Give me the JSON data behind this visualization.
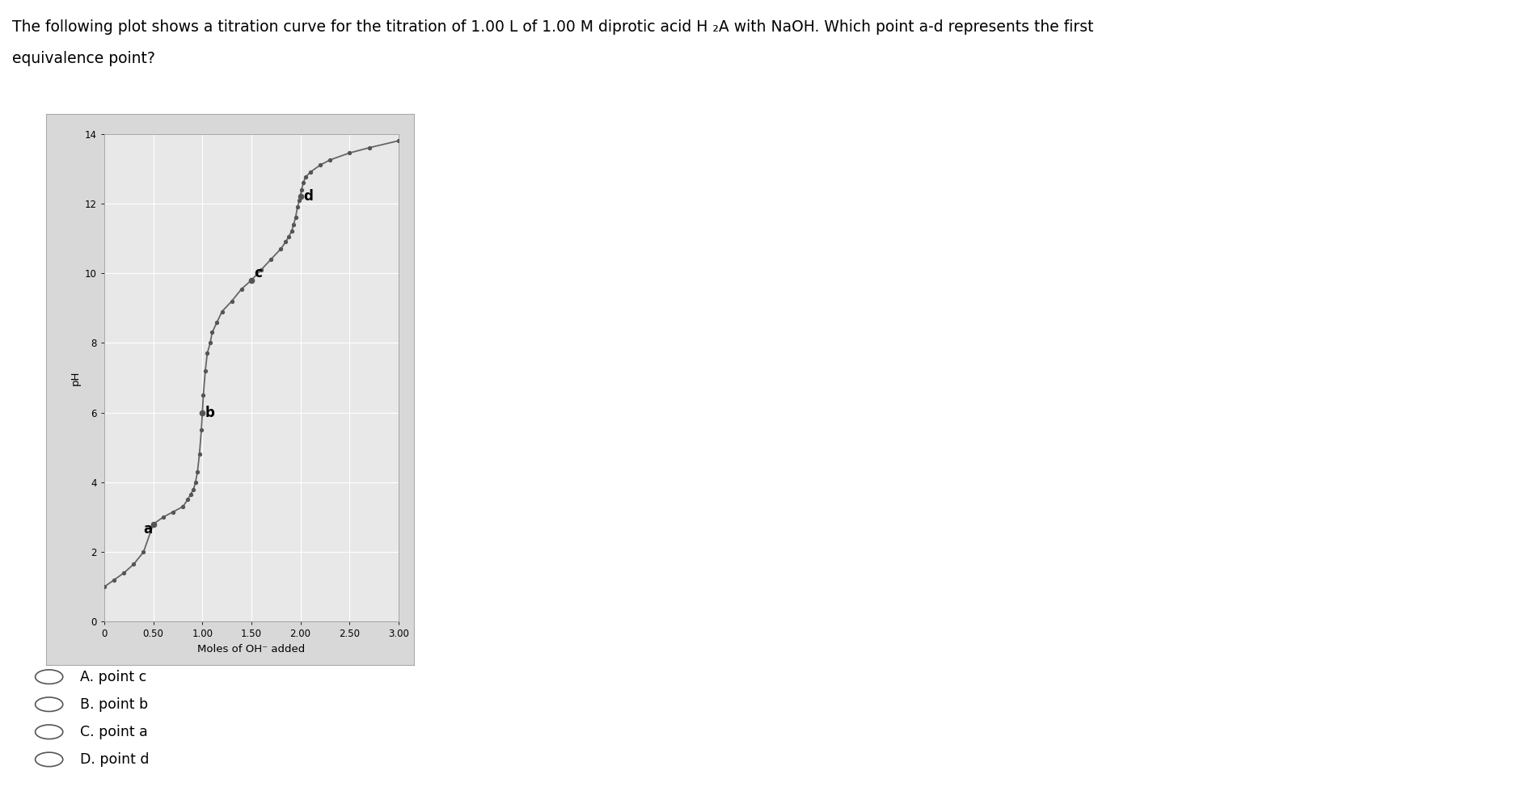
{
  "title_line1": "The following plot shows a titration curve for the titration of 1.00 L of 1.00 M diprotic acid H ₂A with NaOH. Which point a-d represents the first",
  "title_line2": "equivalence point?",
  "xlabel": "Moles of OH⁻ added",
  "ylabel": "pH",
  "xlim": [
    0,
    3.0
  ],
  "ylim": [
    0,
    14
  ],
  "xtick_vals": [
    0,
    0.5,
    1.0,
    1.5,
    2.0,
    2.5,
    3.0
  ],
  "xtick_labels": [
    "0",
    "0.50",
    "1.00",
    "1.50",
    "2.00",
    "2.50",
    "3.00"
  ],
  "ytick_vals": [
    0,
    2,
    4,
    6,
    8,
    10,
    12,
    14
  ],
  "ytick_labels": [
    "0",
    "2",
    "4",
    "6",
    "8",
    "10",
    "12",
    "14"
  ],
  "curve_color": "#666666",
  "marker_color": "#555555",
  "background_color": "#ffffff",
  "plot_bg_color": "#e8e8e8",
  "outer_bg_color": "#d8d8d8",
  "grid_color": "#ffffff",
  "answer_choices": [
    "A. point c",
    "B. point b",
    "C. point a",
    "D. point d"
  ],
  "point_a": [
    0.5,
    2.8
  ],
  "point_b": [
    1.0,
    6.0
  ],
  "point_c": [
    1.5,
    9.8
  ],
  "point_d": [
    2.0,
    12.2
  ],
  "curve_x": [
    0.0,
    0.1,
    0.2,
    0.3,
    0.4,
    0.5,
    0.6,
    0.7,
    0.8,
    0.85,
    0.88,
    0.91,
    0.93,
    0.95,
    0.97,
    0.99,
    1.0,
    1.01,
    1.03,
    1.05,
    1.08,
    1.1,
    1.15,
    1.2,
    1.3,
    1.4,
    1.5,
    1.6,
    1.7,
    1.8,
    1.85,
    1.88,
    1.91,
    1.93,
    1.95,
    1.97,
    1.99,
    2.0,
    2.01,
    2.03,
    2.05,
    2.1,
    2.2,
    2.3,
    2.5,
    2.7,
    3.0
  ],
  "curve_y": [
    1.0,
    1.2,
    1.4,
    1.65,
    2.0,
    2.8,
    3.0,
    3.15,
    3.3,
    3.5,
    3.65,
    3.8,
    4.0,
    4.3,
    4.8,
    5.5,
    6.0,
    6.5,
    7.2,
    7.7,
    8.0,
    8.3,
    8.6,
    8.9,
    9.2,
    9.55,
    9.8,
    10.1,
    10.4,
    10.7,
    10.9,
    11.05,
    11.2,
    11.4,
    11.6,
    11.9,
    12.1,
    12.2,
    12.4,
    12.6,
    12.75,
    12.9,
    13.1,
    13.25,
    13.45,
    13.6,
    13.8
  ]
}
